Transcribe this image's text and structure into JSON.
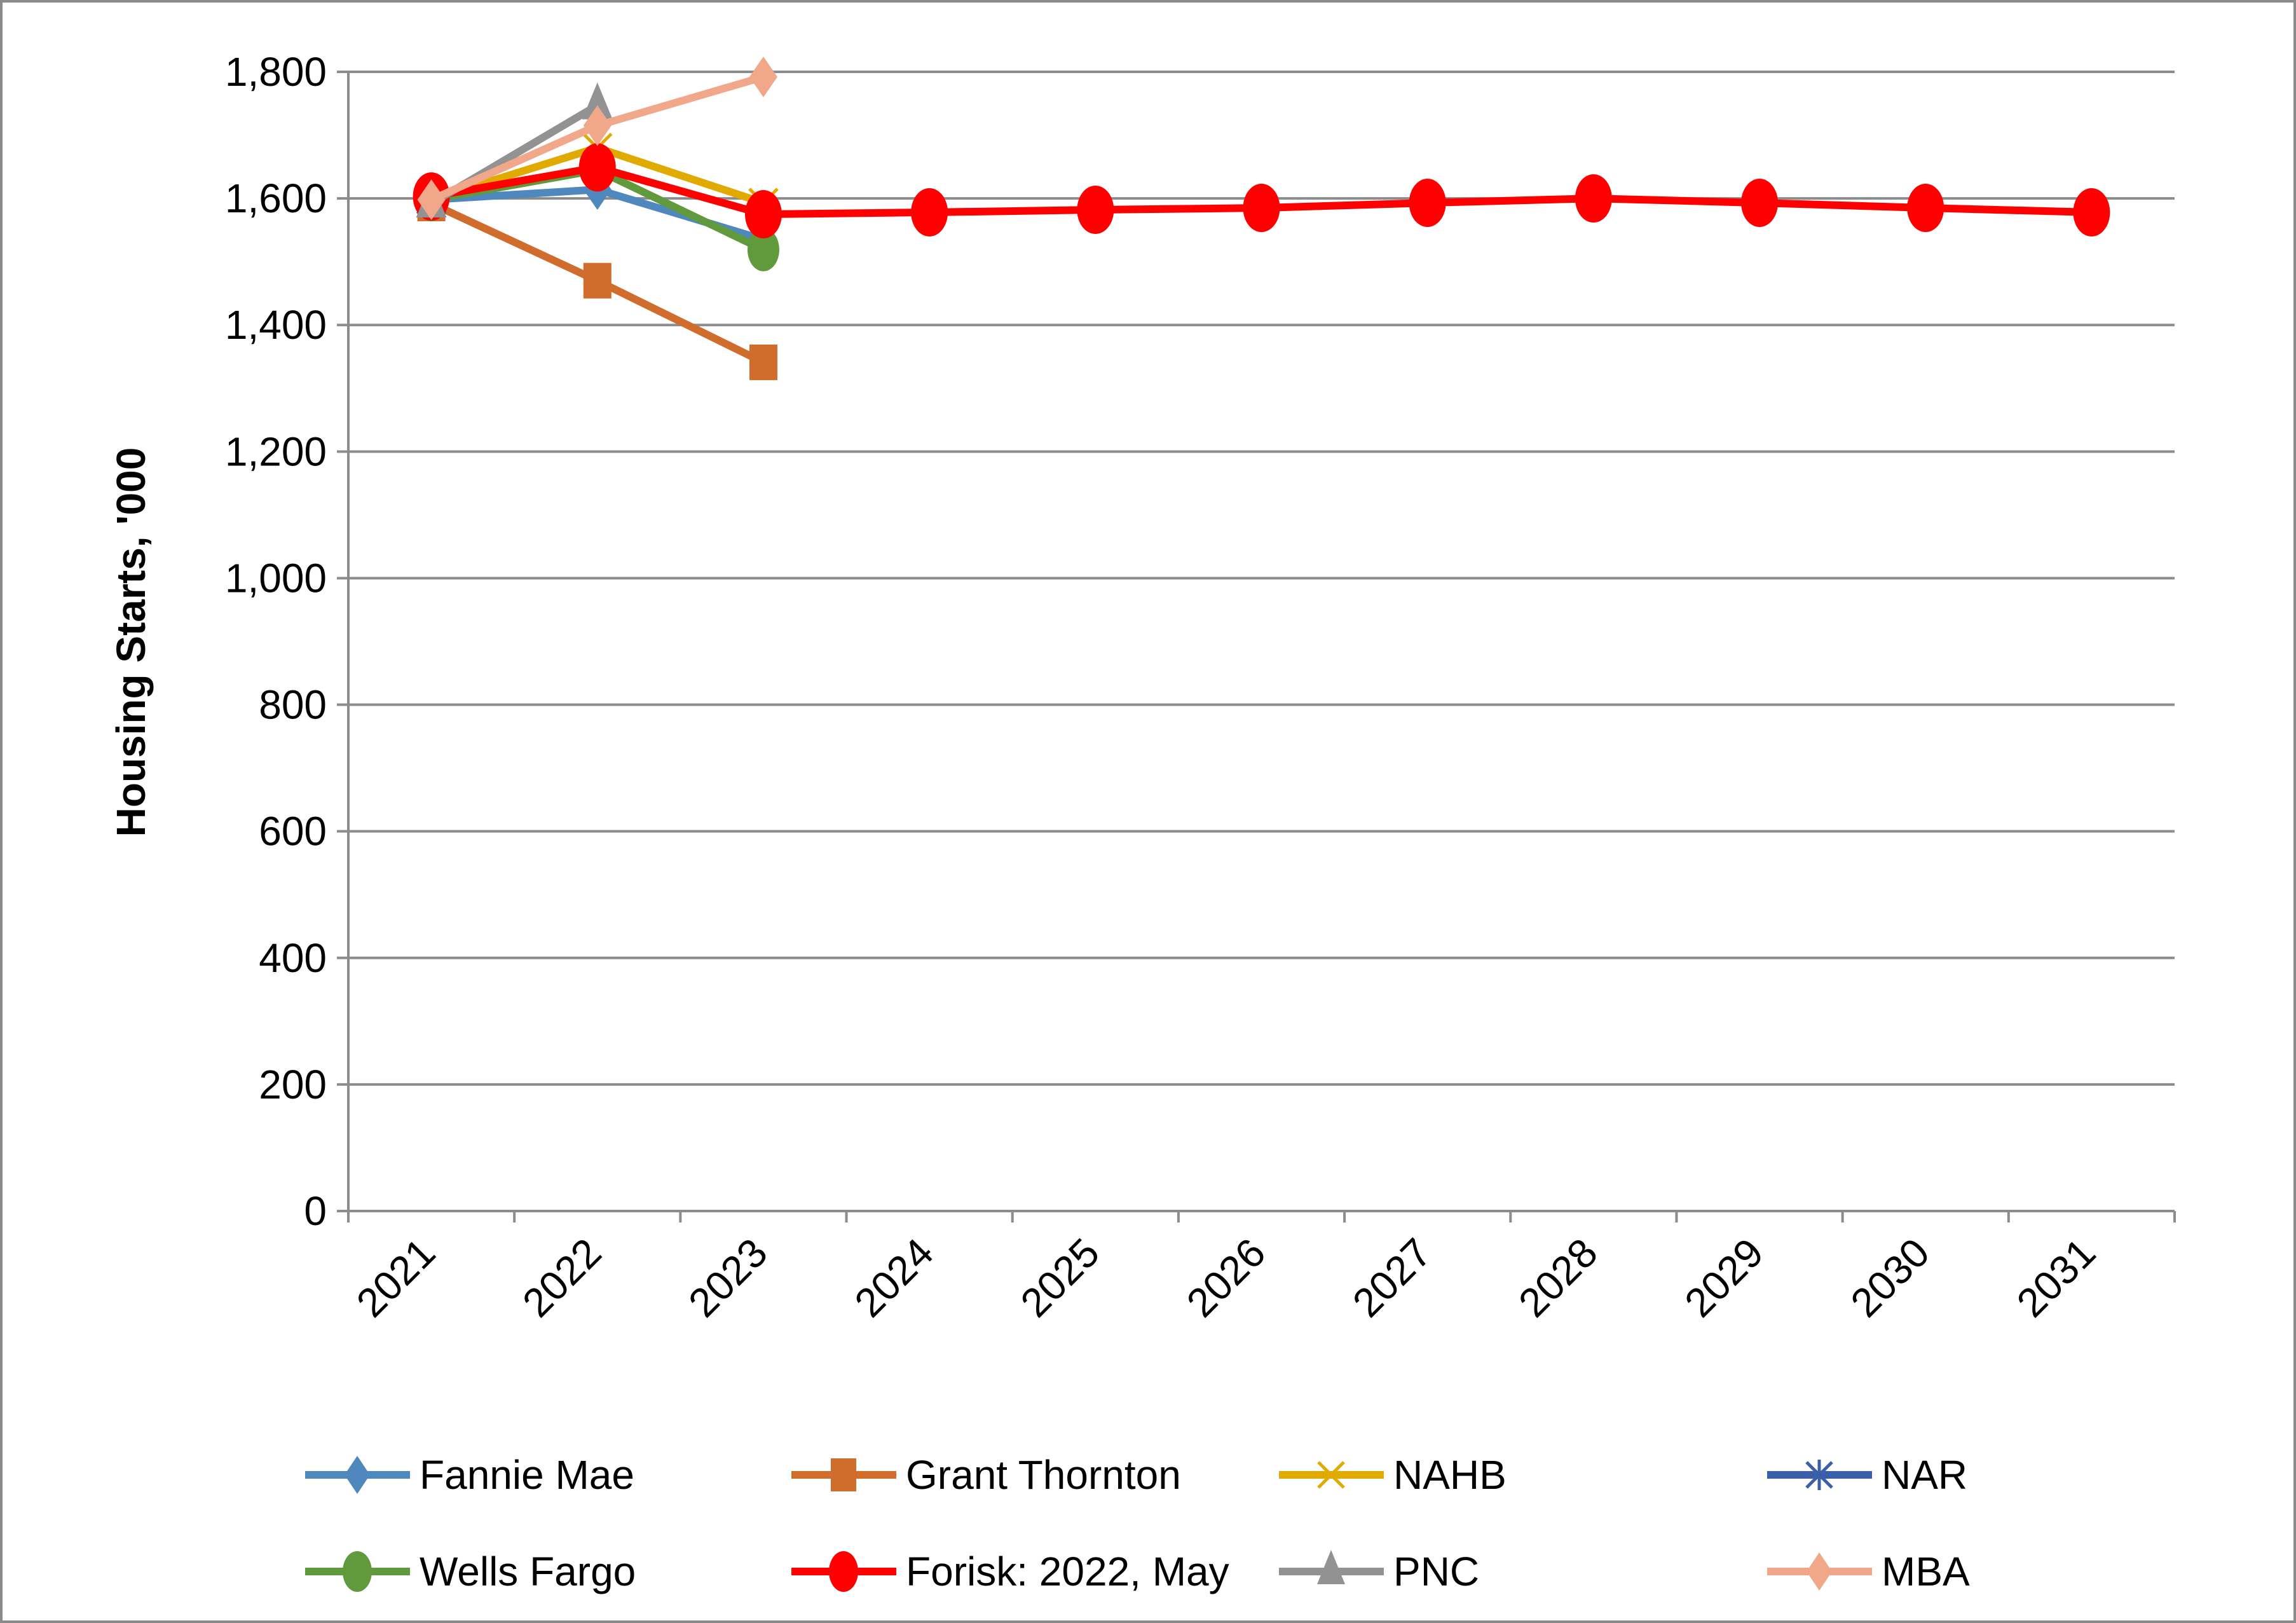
{
  "chart_data": {
    "type": "line",
    "title": "",
    "xlabel": "",
    "ylabel": "Housing Starts, '000",
    "ylim": [
      0,
      1800
    ],
    "ytick_step": 200,
    "ytick_labels": [
      "0",
      "200",
      "400",
      "600",
      "800",
      "1,000",
      "1,200",
      "1,400",
      "1,600",
      "1,800"
    ],
    "categories": [
      "2021",
      "2022",
      "2023",
      "2024",
      "2025",
      "2026",
      "2027",
      "2028",
      "2029",
      "2030",
      "2031"
    ],
    "grid": true,
    "legend_position": "bottom",
    "series": [
      {
        "name": "Fannie Mae",
        "color": "#4F88BC",
        "marker": "diamond",
        "values": [
          1598,
          1614,
          1535,
          null,
          null,
          null,
          null,
          null,
          null,
          null,
          null
        ]
      },
      {
        "name": "Grant Thornton",
        "color": "#D06C2C",
        "marker": "square",
        "values": [
          1592,
          1470,
          1341,
          null,
          null,
          null,
          null,
          null,
          null,
          null,
          null
        ]
      },
      {
        "name": "NAHB",
        "color": "#E0AA00",
        "marker": "x",
        "values": [
          1598,
          1680,
          1593,
          null,
          null,
          null,
          null,
          null,
          null,
          null,
          null
        ]
      },
      {
        "name": "NAR",
        "color": "#3A5FA8",
        "marker": "star",
        "values": [
          1598,
          1648,
          null,
          null,
          null,
          null,
          null,
          null,
          null,
          null,
          null
        ]
      },
      {
        "name": "Wells Fargo",
        "color": "#619A3C",
        "marker": "circle",
        "values": [
          1598,
          1645,
          1519,
          null,
          null,
          null,
          null,
          null,
          null,
          null,
          null
        ]
      },
      {
        "name": "Forisk: 2022, May",
        "color": "#FF0000",
        "marker": "circle",
        "values": [
          1603,
          1649,
          1575,
          1578,
          1582,
          1585,
          1593,
          1600,
          1593,
          1585,
          1578
        ]
      },
      {
        "name": "PNC",
        "color": "#929292",
        "marker": "triangle",
        "values": [
          1592,
          1747,
          null,
          null,
          null,
          null,
          null,
          null,
          null,
          null,
          null
        ]
      },
      {
        "name": "MBA",
        "color": "#F0A78A",
        "marker": "diamond",
        "values": [
          1598,
          1715,
          1792,
          null,
          null,
          null,
          null,
          null,
          null,
          null,
          null
        ]
      }
    ]
  }
}
